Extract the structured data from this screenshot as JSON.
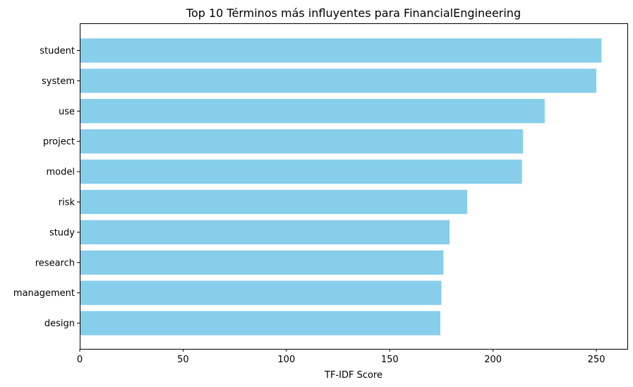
{
  "chart_data": {
    "type": "bar",
    "orientation": "horizontal",
    "title": "Top 10 Términos más influyentes para FinancialEngineering",
    "xlabel": "TF-IDF Score",
    "ylabel": "",
    "categories": [
      "student",
      "system",
      "use",
      "project",
      "model",
      "risk",
      "study",
      "research",
      "management",
      "design"
    ],
    "values": [
      252.5,
      250.0,
      225.0,
      214.5,
      214.0,
      187.5,
      179.0,
      176.0,
      175.0,
      174.5
    ],
    "xlim": [
      0,
      265
    ],
    "xticks": [
      "0",
      "50",
      "100",
      "150",
      "200",
      "250"
    ],
    "xtick_values": [
      0,
      50,
      100,
      150,
      200,
      250
    ],
    "grid": false,
    "bar_color": "#87ceeb"
  }
}
